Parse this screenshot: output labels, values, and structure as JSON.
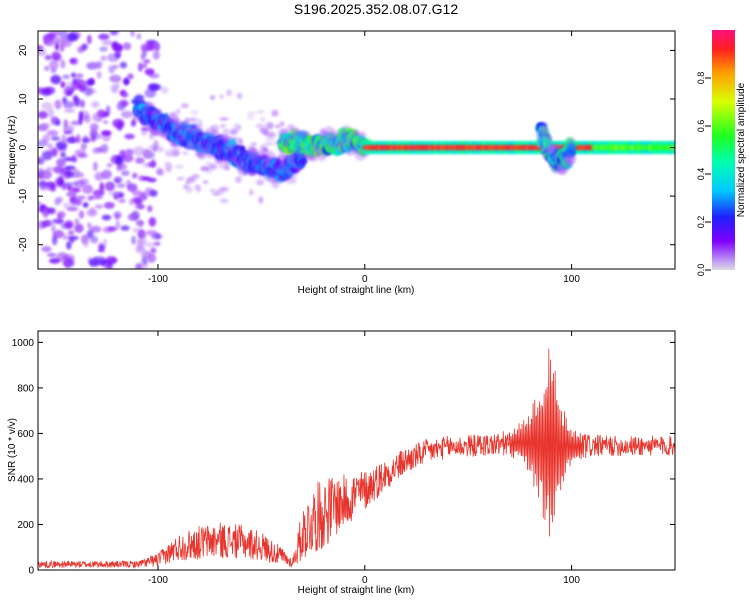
{
  "figure": {
    "title": "S196.2025.352.08.07.G12"
  },
  "chart_data": [
    {
      "type": "heatmap",
      "xlabel": "Height of straight line (km)",
      "ylabel": "Frequency (Hz)",
      "xlim": [
        -158,
        150
      ],
      "ylim": [
        -25,
        24
      ],
      "xticks": [
        -100,
        0,
        100
      ],
      "xtick_labels": [
        "-100",
        "0",
        "100"
      ],
      "yticks": [
        -20,
        -10,
        0,
        10,
        20
      ],
      "ytick_labels": [
        "-20",
        "-10",
        "0",
        "10",
        "20"
      ],
      "colorbar": {
        "label": "Normalized spectral amplitude",
        "range": [
          0,
          1
        ],
        "ticks": [
          0,
          0.2,
          0.4,
          0.6,
          0.8
        ],
        "tick_labels": [
          "0.0",
          "0.2",
          "0.4",
          "0.6",
          "0.8"
        ],
        "colormap": "rainbow (violet to red/pink)"
      },
      "features": [
        {
          "name": "scattered noise",
          "x_range": [
            -158,
            -100
          ],
          "y_range": [
            -25,
            24
          ],
          "amplitude": 0.05
        },
        {
          "name": "descending branch",
          "points": [
            [
              -110,
              8
            ],
            [
              -90,
              3
            ],
            [
              -70,
              0
            ],
            [
              -55,
              -3
            ],
            [
              -40,
              -5
            ],
            [
              -30,
              -2
            ]
          ],
          "amplitude": 0.25
        },
        {
          "name": "converging line",
          "points": [
            [
              -40,
              1
            ],
            [
              -20,
              0.5
            ],
            [
              -5,
              1.5
            ],
            [
              0,
              0
            ]
          ],
          "amplitude": 0.45
        },
        {
          "name": "steady carrier line",
          "points": [
            [
              0,
              0
            ],
            [
              150,
              0
            ]
          ],
          "amplitude": 0.95
        },
        {
          "name": "disturbance",
          "points": [
            [
              85,
              4
            ],
            [
              90,
              -2
            ],
            [
              95,
              -3
            ],
            [
              100,
              0
            ]
          ],
          "amplitude": 0.4
        }
      ]
    },
    {
      "type": "line",
      "xlabel": "Height of straight line (km)",
      "ylabel": "SNR (10 * v/v)",
      "xlim": [
        -158,
        150
      ],
      "ylim": [
        0,
        1050
      ],
      "xticks": [
        -100,
        0,
        100
      ],
      "xtick_labels": [
        "-100",
        "0",
        "100"
      ],
      "yticks": [
        0,
        200,
        400,
        600,
        800,
        1000
      ],
      "ytick_labels": [
        "0",
        "200",
        "400",
        "600",
        "800",
        "1000"
      ],
      "series": [
        {
          "name": "SNR",
          "color": "#e8342c",
          "envelope_x": [
            -158,
            -110,
            -100,
            -90,
            -80,
            -70,
            -60,
            -50,
            -40,
            -35,
            -30,
            -25,
            -20,
            -15,
            -10,
            -5,
            0,
            10,
            20,
            30,
            40,
            50,
            60,
            70,
            75,
            80,
            85,
            88,
            90,
            92,
            95,
            98,
            100,
            110,
            120,
            130,
            140,
            150
          ],
          "envelope_mean": [
            25,
            25,
            45,
            100,
            120,
            130,
            125,
            105,
            60,
            30,
            160,
            220,
            250,
            280,
            300,
            330,
            350,
            420,
            480,
            520,
            540,
            545,
            550,
            555,
            560,
            560,
            560,
            560,
            550,
            540,
            540,
            540,
            540,
            545,
            545,
            545,
            545,
            545
          ],
          "envelope_amp": [
            15,
            15,
            30,
            60,
            75,
            80,
            75,
            65,
            40,
            20,
            120,
            150,
            160,
            140,
            120,
            110,
            90,
            70,
            60,
            55,
            50,
            50,
            50,
            60,
            90,
            150,
            300,
            420,
            470,
            380,
            220,
            120,
            80,
            50,
            45,
            45,
            45,
            45
          ]
        }
      ]
    }
  ]
}
